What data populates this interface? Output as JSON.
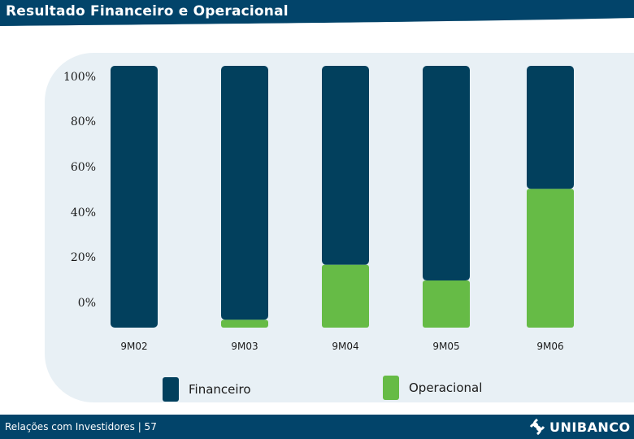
{
  "header": {
    "title": "Resultado Financeiro e Operacional"
  },
  "footer": {
    "text": "Relações com Investidores | 57",
    "logo_text": "UNIBANCO"
  },
  "colors": {
    "financeiro": "#02405d",
    "operacional": "#66bb46",
    "header": "#02446a",
    "panel": "#e8f0f5"
  },
  "chart_data": {
    "type": "bar",
    "stacked": true,
    "categories": [
      "9M02",
      "9M03",
      "9M04",
      "9M05",
      "9M06"
    ],
    "series": [
      {
        "name": "Financeiro",
        "values": [
          100,
          97,
          76,
          82,
          47
        ]
      },
      {
        "name": "Operacional",
        "values": [
          0,
          3,
          24,
          18,
          53
        ]
      }
    ],
    "yticks": [
      "100%",
      "80%",
      "60%",
      "40%",
      "20%",
      "0%"
    ],
    "ylim": [
      0,
      100
    ],
    "legend_position": "bottom"
  }
}
